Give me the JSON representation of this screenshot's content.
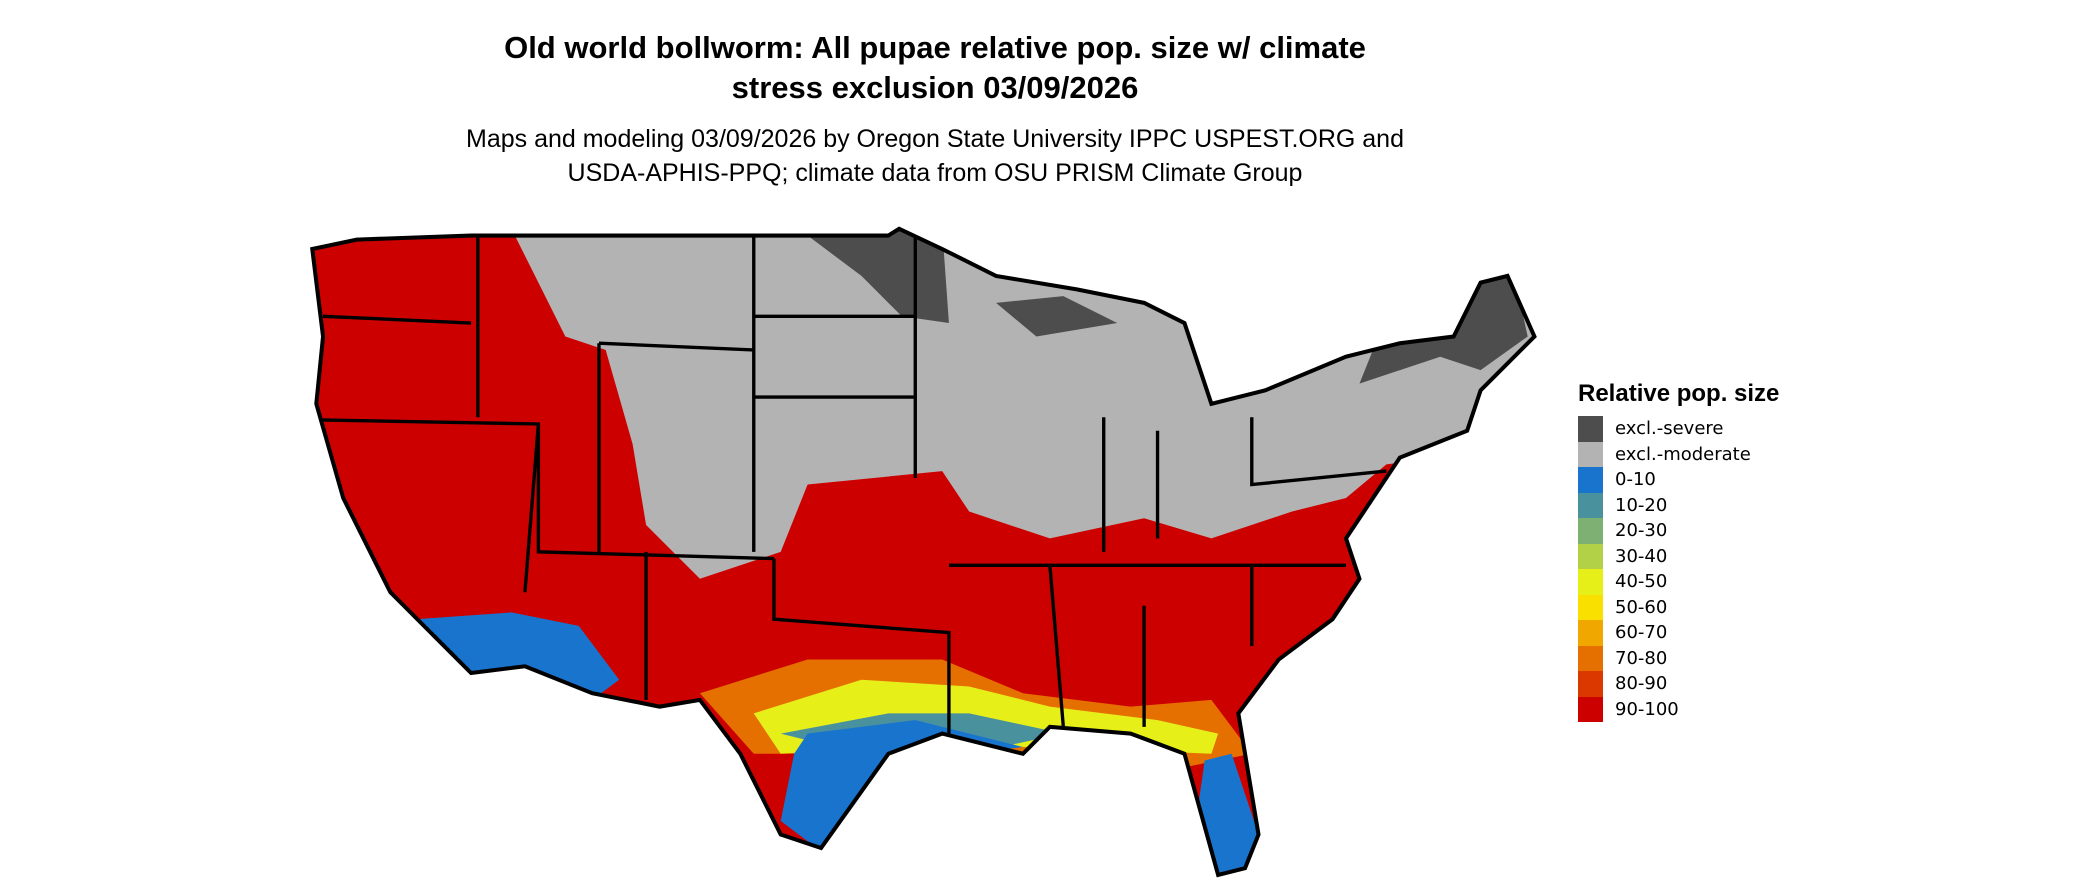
{
  "title_line1": "Old world bollworm: All pupae relative pop. size w/ climate",
  "title_line2": "stress exclusion 03/09/2026",
  "subtitle_line1": "Maps and modeling 03/09/2026 by Oregon State University IPPC USPEST.ORG and",
  "subtitle_line2": "USDA-APHIS-PPQ; climate data from OSU PRISM Climate Group",
  "legend": {
    "title": "Relative pop. size",
    "items": [
      {
        "label": "excl.-severe",
        "color": "#4d4d4d"
      },
      {
        "label": "excl.-moderate",
        "color": "#b3b3b3"
      },
      {
        "label": "0-10",
        "color": "#1874cd"
      },
      {
        "label": "10-20",
        "color": "#4a919e"
      },
      {
        "label": "20-30",
        "color": "#7db072"
      },
      {
        "label": "30-40",
        "color": "#b3d147"
      },
      {
        "label": "40-50",
        "color": "#e6f018"
      },
      {
        "label": "50-60",
        "color": "#f9e000"
      },
      {
        "label": "60-70",
        "color": "#f0a800"
      },
      {
        "label": "70-80",
        "color": "#e57000"
      },
      {
        "label": "80-90",
        "color": "#db3800"
      },
      {
        "label": "90-100",
        "color": "#cd0000"
      }
    ]
  }
}
